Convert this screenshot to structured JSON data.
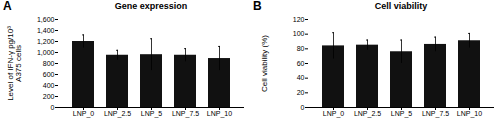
{
  "chart_data": [
    {
      "type": "bar",
      "title": "Gene expression",
      "annotations": [
        "A"
      ],
      "ylabel": "Level of IFN-γ pg/10³\nA375 cells",
      "categories": [
        "LNP_0",
        "LNP_2.5",
        "LNP_5",
        "LNP_7.5",
        "LNP_10"
      ],
      "values": [
        1200,
        950,
        960,
        950,
        890
      ],
      "errors": [
        120,
        90,
        290,
        120,
        220
      ],
      "color": "#111111",
      "ylim": [
        0,
        1600
      ],
      "yticks": [
        0,
        200,
        400,
        600,
        800,
        {
          "value": 1000,
          "label": "1,000"
        },
        {
          "value": 1200,
          "label": "1,200"
        },
        {
          "value": 1400,
          "label": "1,400"
        },
        {
          "value": 1600,
          "label": "1,600"
        }
      ]
    },
    {
      "type": "bar",
      "title": "Cell viability",
      "annotations": [
        "B"
      ],
      "ylabel": "Cell viability (%)",
      "categories": [
        "LNP_0",
        "LNP_2.5",
        "LNP_5",
        "LNP_7.5",
        "LNP_10"
      ],
      "values": [
        84,
        85,
        76,
        86,
        91
      ],
      "errors": [
        18,
        7,
        16,
        10,
        10
      ],
      "color": "#111111",
      "ylim": [
        0,
        120
      ],
      "yticks": [
        0,
        20,
        40,
        60,
        80,
        100,
        120
      ]
    }
  ]
}
